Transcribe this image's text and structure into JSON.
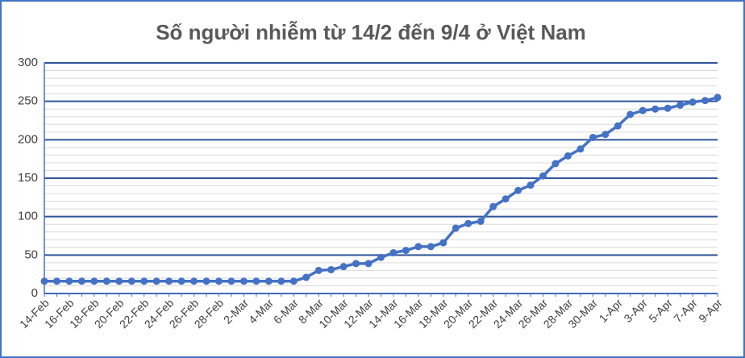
{
  "chart_data": {
    "type": "line",
    "title": "Số người nhiễm từ 14/2 đến 9/4 ở Việt Nam",
    "categories": [
      "14-Feb",
      null,
      "16-Feb",
      null,
      "18-Feb",
      null,
      "20-Feb",
      null,
      "22-Feb",
      null,
      "24-Feb",
      null,
      "26-Feb",
      null,
      "28-Feb",
      null,
      "2-Mar",
      null,
      "4-Mar",
      null,
      "6-Mar",
      null,
      "8-Mar",
      null,
      "10-Mar",
      null,
      "12-Mar",
      null,
      "14-Mar",
      null,
      "16-Mar",
      null,
      "18-Mar",
      null,
      "20-Mar",
      null,
      "22-Mar",
      null,
      "24-Mar",
      null,
      "26-Mar",
      null,
      "28-Mar",
      null,
      "30-Mar",
      null,
      "1-Apr",
      null,
      "3-Apr",
      null,
      "5-Apr",
      null,
      "7-Apr",
      null,
      "9-Apr"
    ],
    "series": [
      {
        "color": "#4472c4",
        "values": [
          16,
          16,
          16,
          16,
          16,
          16,
          16,
          16,
          16,
          16,
          16,
          16,
          16,
          16,
          16,
          16,
          16,
          16,
          16,
          16,
          16,
          21,
          30,
          31,
          35,
          39,
          39,
          47,
          53,
          56,
          61,
          61,
          66,
          85,
          91,
          94,
          113,
          123,
          134,
          141,
          153,
          169,
          179,
          188,
          203,
          207,
          218,
          233,
          238,
          240,
          241,
          245,
          249,
          251,
          255
        ]
      }
    ],
    "ylim": [
      0,
      300
    ],
    "yticks": [
      0,
      50,
      100,
      150,
      200,
      250,
      300
    ],
    "grid": true,
    "grid_color": "#2f5597",
    "minor_grid": 10
  }
}
